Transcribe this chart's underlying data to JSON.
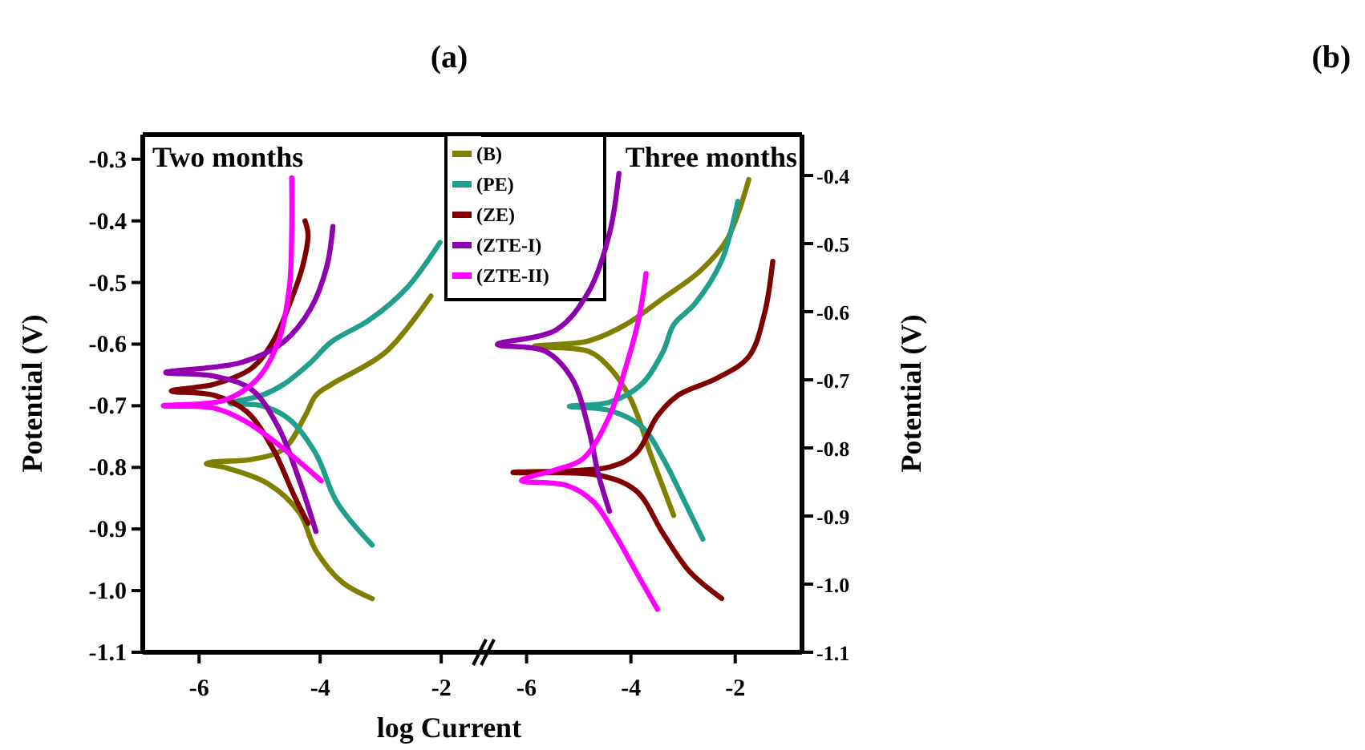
{
  "chart_data": [
    {
      "type": "line",
      "title": "(a)",
      "xlabel": "log Current",
      "ylabel": "Potential (V)",
      "annotations": [
        "Two months"
      ],
      "xlim": [
        -6.93,
        -1.34
      ],
      "xticks": [
        -6,
        -4,
        -2
      ],
      "ylim": [
        -1.1,
        -0.26
      ],
      "yticks": [
        {
          "value": -1.1,
          "label": "-1.1"
        },
        {
          "value": -1,
          "label": "-1.0"
        },
        -0.9,
        -0.8,
        -0.7,
        -0.6,
        -0.5,
        -0.4,
        -0.3
      ],
      "grid": false,
      "legend": "top right",
      "marker": "none",
      "line_style": "solid",
      "series": [
        {
          "name": "(B)",
          "color": "#808000",
          "x": [
            -2.17,
            -2.92,
            -3.81,
            -4.07,
            -4.25,
            -4.6,
            -5.13,
            -5.75,
            -5.88,
            -5.58,
            -4.87,
            -4.34,
            -4.07,
            -3.63,
            -3.14
          ],
          "values": [
            -0.522,
            -0.613,
            -0.665,
            -0.683,
            -0.717,
            -0.77,
            -0.787,
            -0.791,
            -0.794,
            -0.8,
            -0.826,
            -0.874,
            -0.935,
            -0.987,
            -1.013
          ]
        },
        {
          "name": "(PE)",
          "color": "#20a08c",
          "x": [
            -2.02,
            -2.57,
            -3.19,
            -3.81,
            -4.16,
            -4.6,
            -4.96,
            -5.49,
            -4.96,
            -4.51,
            -4.07,
            -3.72,
            -3.14
          ],
          "values": [
            -0.435,
            -0.509,
            -0.561,
            -0.596,
            -0.63,
            -0.665,
            -0.683,
            -0.696,
            -0.7,
            -0.722,
            -0.778,
            -0.857,
            -0.926
          ]
        },
        {
          "name": "(ZE)",
          "color": "#800000",
          "x": [
            -4.25,
            -4.2,
            -4.29,
            -4.47,
            -4.78,
            -5.13,
            -5.75,
            -6.46,
            -5.75,
            -5.22,
            -4.78,
            -4.42,
            -4.2
          ],
          "values": [
            -0.4,
            -0.422,
            -0.474,
            -0.526,
            -0.596,
            -0.639,
            -0.665,
            -0.676,
            -0.683,
            -0.709,
            -0.77,
            -0.848,
            -0.891
          ]
        },
        {
          "name": "(ZTE-I)",
          "color": "#9000b0",
          "x": [
            -3.79,
            -3.89,
            -4.16,
            -4.6,
            -5.31,
            -6.55,
            -5.75,
            -5.13,
            -4.69,
            -4.34,
            -4.07
          ],
          "values": [
            -0.409,
            -0.474,
            -0.543,
            -0.596,
            -0.63,
            -0.646,
            -0.652,
            -0.674,
            -0.735,
            -0.822,
            -0.904
          ]
        },
        {
          "name": "(ZTE-II)",
          "color": "#ff00ff",
          "x": [
            -4.47,
            -4.47,
            -4.51,
            -4.69,
            -5.04,
            -5.58,
            -6.59,
            -5.75,
            -5.22,
            -4.6,
            -3.98
          ],
          "values": [
            -0.33,
            -0.422,
            -0.509,
            -0.596,
            -0.657,
            -0.691,
            -0.7,
            -0.704,
            -0.726,
            -0.77,
            -0.822
          ]
        }
      ]
    },
    {
      "type": "line",
      "y2label": "Potential (V)",
      "annotations": [
        "Three months",
        "(b)"
      ],
      "xlim": [
        -6.87,
        -0.72
      ],
      "xticks": [
        -6,
        -4,
        -2
      ],
      "y2lim": [
        -1.1,
        -0.34
      ],
      "y2ticks": [
        {
          "value": -1.1,
          "label": "-1.1"
        },
        {
          "value": -1,
          "label": "-1.0"
        },
        -0.9,
        -0.8,
        -0.7,
        -0.6,
        -0.5,
        -0.4
      ],
      "grid": false,
      "marker": "none",
      "line_style": "solid",
      "series": [
        {
          "color": "#808000",
          "axis": "y2",
          "x": [
            -1.74,
            -2.15,
            -2.67,
            -3.38,
            -4.1,
            -4.82,
            -5.85,
            -4.82,
            -4.41,
            -4.0,
            -3.59,
            -3.18
          ],
          "values": [
            -0.406,
            -0.493,
            -0.54,
            -0.58,
            -0.619,
            -0.643,
            -0.651,
            -0.658,
            -0.682,
            -0.729,
            -0.816,
            -0.899
          ]
        },
        {
          "color": "#20a08c",
          "axis": "y2",
          "x": [
            -1.95,
            -2.26,
            -2.77,
            -3.18,
            -3.38,
            -3.79,
            -4.41,
            -5.18,
            -4.41,
            -3.79,
            -3.38,
            -2.97,
            -2.62
          ],
          "values": [
            -0.438,
            -0.525,
            -0.588,
            -0.619,
            -0.658,
            -0.706,
            -0.733,
            -0.739,
            -0.745,
            -0.769,
            -0.816,
            -0.879,
            -0.934
          ]
        },
        {
          "color": "#800000",
          "axis": "y2",
          "x": [
            -1.28,
            -1.44,
            -1.74,
            -2.36,
            -3.08,
            -3.49,
            -3.9,
            -4.41,
            -6.26,
            -4.62,
            -3.9,
            -3.38,
            -2.87,
            -2.26
          ],
          "values": [
            -0.526,
            -0.603,
            -0.666,
            -0.698,
            -0.722,
            -0.753,
            -0.808,
            -0.828,
            -0.836,
            -0.84,
            -0.863,
            -0.926,
            -0.982,
            -1.021
          ]
        },
        {
          "color": "#9000b0",
          "axis": "y2",
          "x": [
            -4.23,
            -4.41,
            -4.82,
            -5.44,
            -6.56,
            -5.64,
            -5.13,
            -4.82,
            -4.62,
            -4.41
          ],
          "values": [
            -0.397,
            -0.485,
            -0.572,
            -0.627,
            -0.648,
            -0.658,
            -0.698,
            -0.769,
            -0.84,
            -0.893
          ]
        },
        {
          "color": "#ff00ff",
          "axis": "y2",
          "x": [
            -3.71,
            -3.85,
            -4.1,
            -4.41,
            -4.92,
            -5.44,
            -6.1,
            -5.23,
            -4.72,
            -4.31,
            -3.9,
            -3.49
          ],
          "values": [
            -0.544,
            -0.611,
            -0.682,
            -0.753,
            -0.816,
            -0.832,
            -0.848,
            -0.855,
            -0.879,
            -0.926,
            -0.982,
            -1.037
          ]
        }
      ]
    }
  ]
}
